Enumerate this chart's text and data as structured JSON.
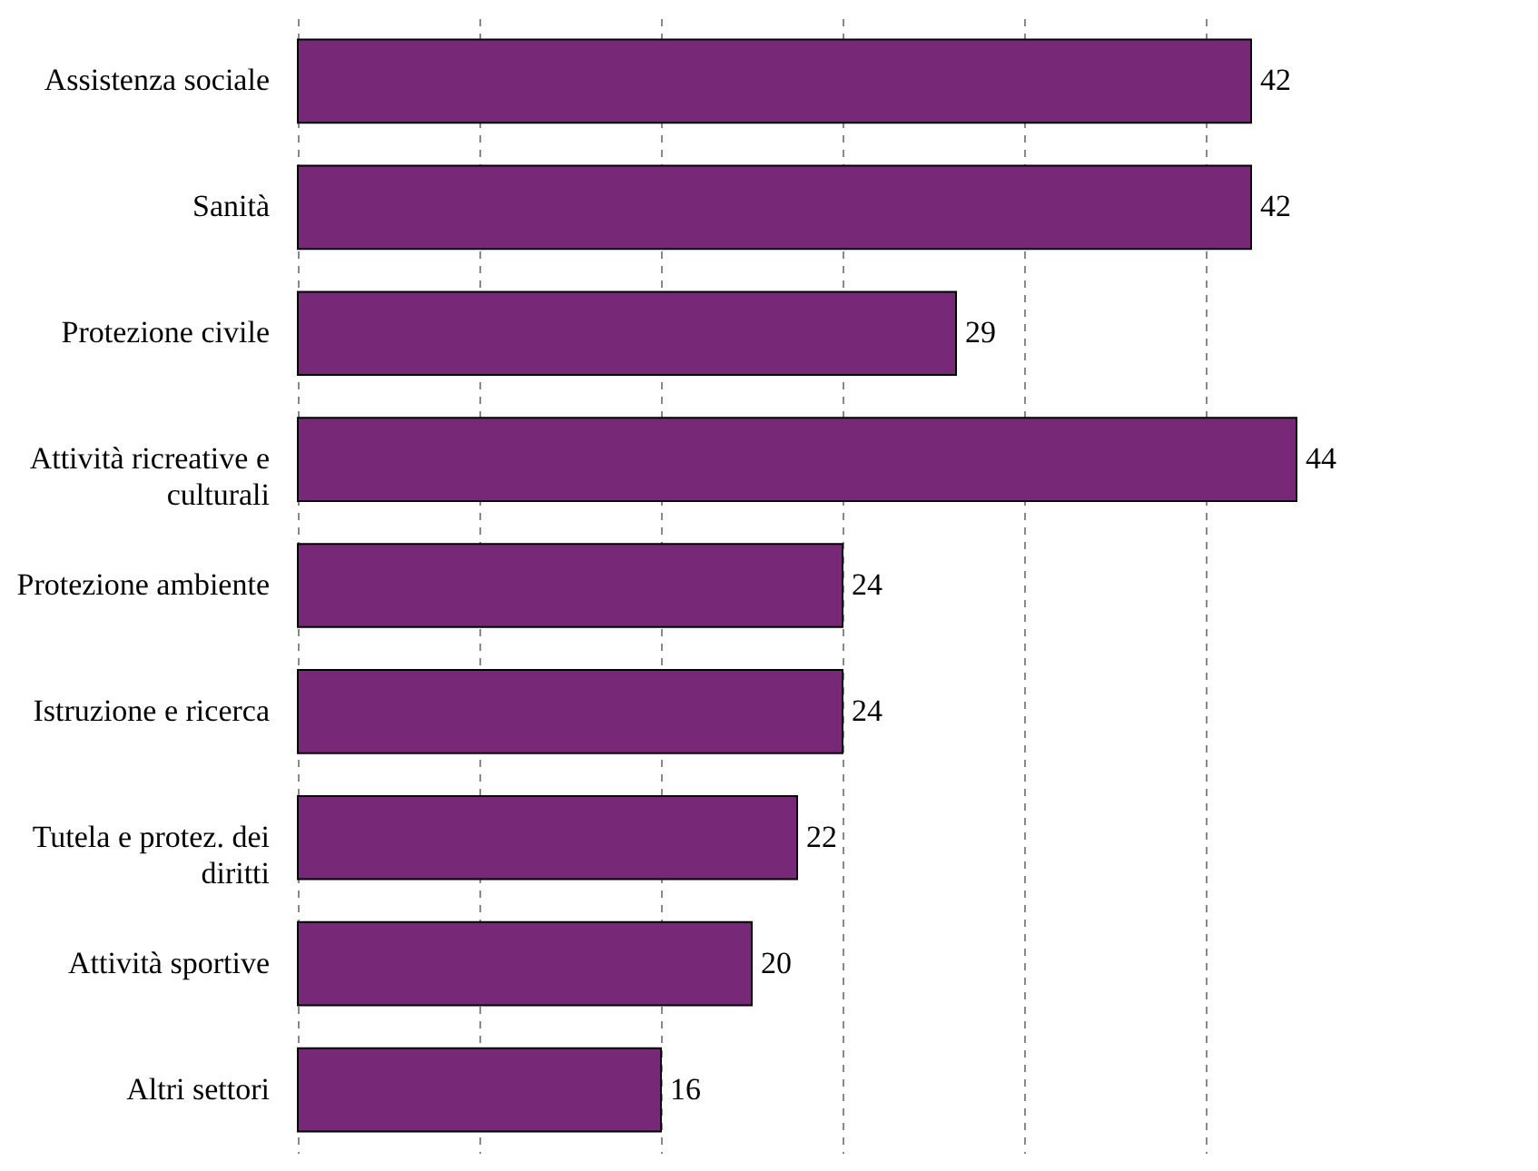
{
  "chart_data": {
    "type": "bar",
    "orientation": "horizontal",
    "categories": [
      "Assistenza sociale",
      "Sanità",
      "Protezione civile",
      "Attività ricreative e culturali",
      "Protezione ambiente",
      "Istruzione e ricerca",
      "Tutela e protez. dei diritti",
      "Attività sportive",
      "Altri settori"
    ],
    "values": [
      42,
      42,
      29,
      44,
      24,
      24,
      22,
      20,
      16
    ],
    "color": "#772877",
    "xticks": [
      {
        "value": 0,
        "label": null
      },
      {
        "value": 8,
        "label": null
      },
      {
        "value": 16,
        "label": null
      },
      {
        "value": 24,
        "label": null
      },
      {
        "value": 32,
        "label": null
      },
      {
        "value": 40,
        "label": null
      }
    ],
    "grid": "x",
    "data_labels": true
  }
}
